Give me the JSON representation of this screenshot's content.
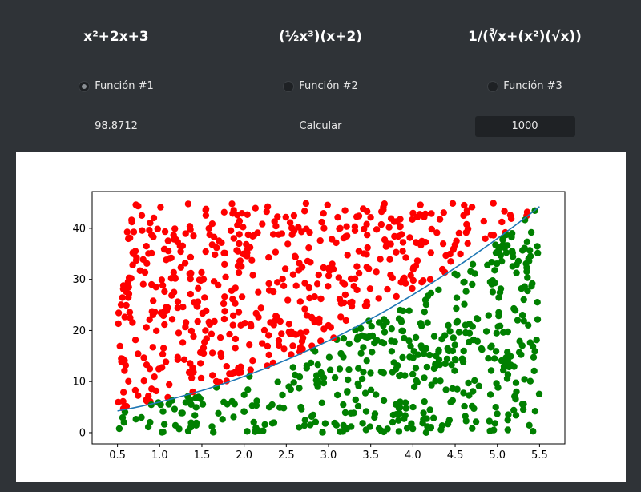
{
  "functions": [
    {
      "label": "x²+2x+3",
      "radio_label": "Función #1",
      "selected": true
    },
    {
      "label": "(½x³)(x+2)",
      "radio_label": "Función #2",
      "selected": false
    },
    {
      "label": "1/(∛x+(x²)(√x))",
      "radio_label": "Función #3",
      "selected": false
    }
  ],
  "controls": {
    "result": "98.8712",
    "calculate_label": "Calcular",
    "points_value": "1000"
  },
  "colors": {
    "background": "#2f3337",
    "above_curve": "#ff0000",
    "below_curve": "#008000",
    "curve": "#1f77b4"
  },
  "chart_data": {
    "type": "scatter",
    "title": "",
    "xlabel": "",
    "ylabel": "",
    "xlim": [
      0.5,
      5.5
    ],
    "ylim": [
      0,
      45
    ],
    "xticks": [
      "0.5",
      "1.0",
      "1.5",
      "2.0",
      "2.5",
      "3.0",
      "3.5",
      "4.0",
      "4.5",
      "5.0",
      "5.5"
    ],
    "yticks": [
      "0",
      "10",
      "20",
      "30",
      "40"
    ],
    "curve": {
      "function": "x^2+2x+3",
      "x_range": [
        0.5,
        5.5
      ]
    },
    "series": [
      {
        "color": "#ff0000",
        "rule": "y > f(x)"
      },
      {
        "color": "#008000",
        "rule": "y <= f(x)"
      }
    ],
    "point_count": 1000,
    "grid": false
  }
}
